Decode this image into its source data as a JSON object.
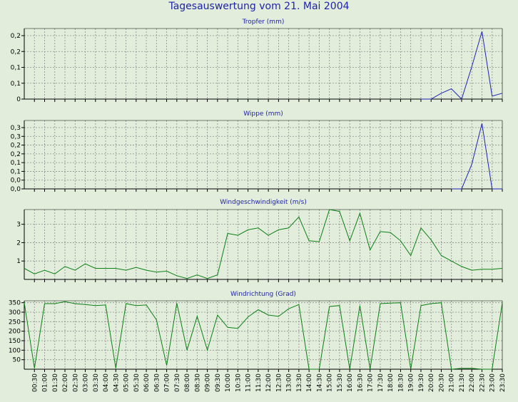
{
  "page": {
    "title": "Tagesauswertung vom 21. Mai 2004"
  },
  "colors": {
    "background": "#e2eedb",
    "title": "#1f23a8",
    "blue_line": "#1d23b8",
    "green_line": "#0c7f16",
    "grid": "#8c8c8c"
  },
  "chart_data": [
    {
      "type": "line",
      "title": "Tropfer (mm)",
      "y_tick_labels": [
        "0,2",
        "0,2",
        "0,1",
        "0,1",
        "0"
      ],
      "ylim": [
        0,
        0.24
      ],
      "grid": true,
      "color": "#1d23b8",
      "series": [
        {
          "x": [
            "19:30",
            "20:00",
            "20:30",
            "21:00",
            "21:30",
            "22:00",
            "22:30",
            "23:00",
            "23:30"
          ],
          "values": [
            0,
            0,
            0.02,
            0.035,
            0,
            0.11,
            0.23,
            0.01,
            0.02
          ]
        }
      ]
    },
    {
      "type": "line",
      "title": "Wippe (mm)",
      "y_tick_labels": [
        "0,3",
        "0,3",
        "0,2",
        "0,2",
        "0,1",
        "0,1",
        "0,0",
        "0,0"
      ],
      "ylim": [
        0,
        0.335
      ],
      "grid": true,
      "color": "#1d23b8",
      "series": [
        {
          "x": [
            "21:00",
            "21:30",
            "22:00",
            "22:30",
            "23:00",
            "23:30"
          ],
          "values": [
            0,
            0,
            0.12,
            0.32,
            0,
            0
          ]
        }
      ]
    },
    {
      "type": "line",
      "title": "Windgeschwindigkeit (m/s)",
      "y_ticks": [
        1,
        2,
        3
      ],
      "ylim": [
        0,
        3.8
      ],
      "grid": true,
      "color": "#0c7f16",
      "series": [
        {
          "x": [
            "00:00",
            "00:30",
            "01:00",
            "01:30",
            "02:00",
            "02:30",
            "03:00",
            "03:30",
            "04:00",
            "04:30",
            "05:00",
            "05:30",
            "06:00",
            "06:30",
            "07:00",
            "07:30",
            "08:00",
            "08:30",
            "09:00",
            "09:30",
            "10:00",
            "10:30",
            "11:00",
            "11:30",
            "12:00",
            "12:30",
            "13:00",
            "13:30",
            "14:00",
            "14:30",
            "15:00",
            "15:30",
            "16:00",
            "16:30",
            "17:00",
            "17:30",
            "18:00",
            "18:30",
            "19:00",
            "19:30",
            "20:00",
            "20:30",
            "21:00",
            "21:30",
            "22:00",
            "22:30",
            "23:00",
            "23:30"
          ],
          "values": [
            0.6,
            0.3,
            0.5,
            0.3,
            0.7,
            0.5,
            0.85,
            0.6,
            0.6,
            0.6,
            0.5,
            0.65,
            0.5,
            0.4,
            0.45,
            0.2,
            0.05,
            0.25,
            0.05,
            0.25,
            2.5,
            2.4,
            2.7,
            2.8,
            2.4,
            2.7,
            2.8,
            3.4,
            2.1,
            2.05,
            3.8,
            3.7,
            2.1,
            3.6,
            1.6,
            2.6,
            2.55,
            2.1,
            1.3,
            2.8,
            2.15,
            1.3,
            1.0,
            0.7,
            0.5,
            0.55,
            0.55,
            0.6
          ]
        }
      ]
    },
    {
      "type": "line",
      "title": "Windrichtung (Grad)",
      "y_ticks": [
        50,
        100,
        150,
        200,
        250,
        300,
        350
      ],
      "ylim": [
        0,
        360
      ],
      "grid": true,
      "color": "#0c7f16",
      "series": [
        {
          "x": [
            "00:00",
            "00:30",
            "01:00",
            "01:30",
            "02:00",
            "02:30",
            "03:00",
            "03:30",
            "04:00",
            "04:30",
            "05:00",
            "05:30",
            "06:00",
            "06:30",
            "07:00",
            "07:30",
            "08:00",
            "08:30",
            "09:00",
            "09:30",
            "10:00",
            "10:30",
            "11:00",
            "11:30",
            "12:00",
            "12:30",
            "13:00",
            "13:30",
            "14:00",
            "14:30",
            "15:00",
            "15:30",
            "16:00",
            "16:30",
            "17:00",
            "17:30",
            "18:00",
            "18:30",
            "19:00",
            "19:30",
            "20:00",
            "20:30",
            "21:00",
            "21:30",
            "22:00",
            "22:30",
            "23:00",
            "23:30"
          ],
          "values": [
            350,
            5,
            345,
            345,
            355,
            345,
            340,
            335,
            338,
            5,
            345,
            335,
            338,
            260,
            20,
            348,
            100,
            278,
            100,
            285,
            220,
            215,
            275,
            313,
            285,
            278,
            318,
            340,
            0,
            0,
            330,
            335,
            0,
            335,
            0,
            345,
            348,
            350,
            0,
            335,
            345,
            350,
            0,
            5,
            5,
            0,
            0,
            350
          ]
        }
      ],
      "x_tick_labels": [
        "00:30",
        "01:00",
        "01:30",
        "02:00",
        "02:30",
        "03:00",
        "03:30",
        "04:00",
        "04:30",
        "05:00",
        "05:30",
        "06:00",
        "06:30",
        "07:00",
        "07:30",
        "08:00",
        "08:30",
        "09:00",
        "09:30",
        "10:00",
        "10:30",
        "11:00",
        "11:30",
        "12:00",
        "12:30",
        "13:00",
        "13:30",
        "14:00",
        "14:30",
        "15:00",
        "15:30",
        "16:00",
        "16:30",
        "17:00",
        "17:30",
        "18:00",
        "18:30",
        "19:00",
        "19:30",
        "20:00",
        "20:30",
        "21:00",
        "21:30",
        "22:00",
        "22:30",
        "23:00",
        "23:30"
      ]
    }
  ]
}
